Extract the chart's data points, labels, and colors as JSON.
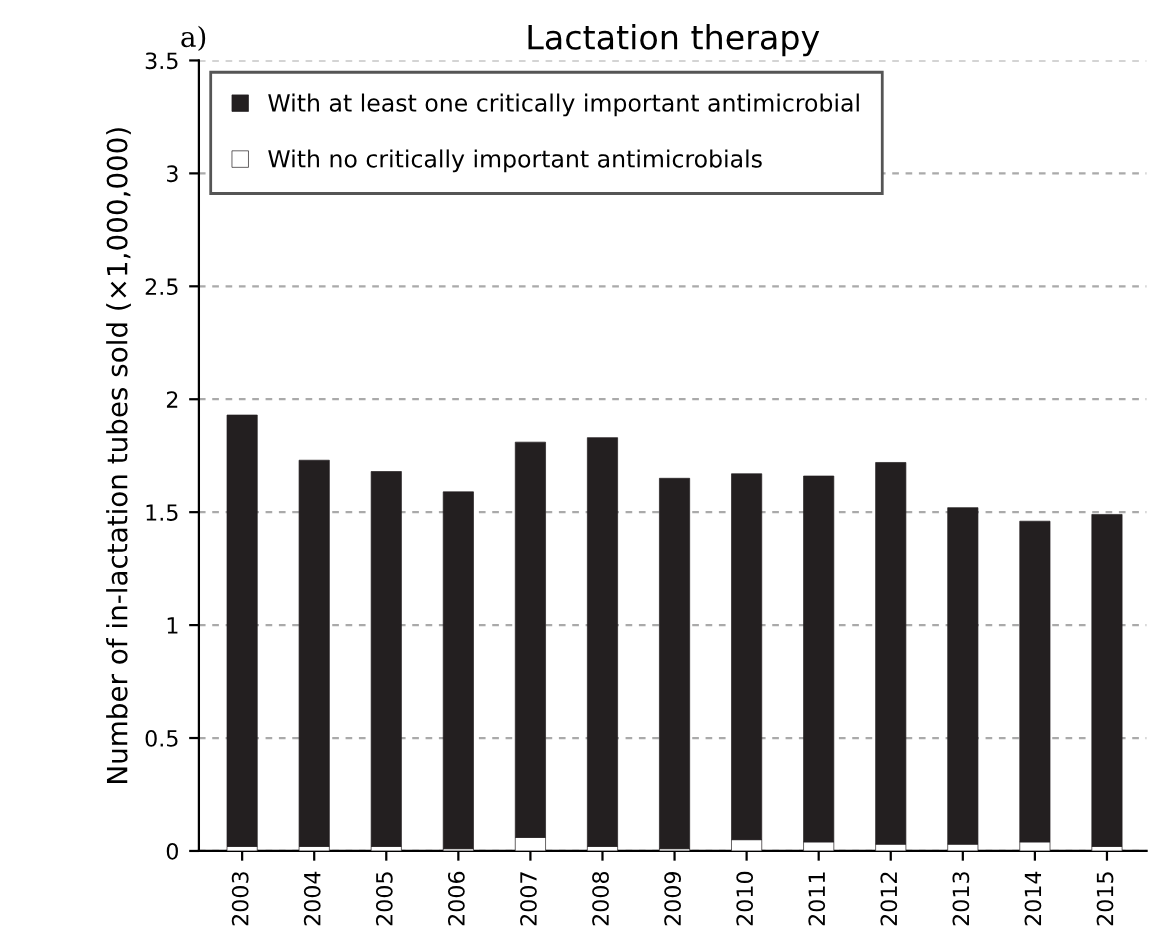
{
  "chart_data": {
    "type": "bar",
    "title": "Lactation therapy",
    "ylabel": "Number of in-lactation tubes sold (×1,000,000)",
    "annotations": [
      "a)"
    ],
    "categories": [
      "2003",
      "2004",
      "2005",
      "2006",
      "2007",
      "2008",
      "2009",
      "2010",
      "2011",
      "2012",
      "2013",
      "2014",
      "2015"
    ],
    "stacked": true,
    "series": [
      {
        "name": "With no critically important antimicrobials",
        "color": "#ffffff",
        "values": [
          0.02,
          0.02,
          0.02,
          0.01,
          0.06,
          0.02,
          0.01,
          0.05,
          0.04,
          0.03,
          0.03,
          0.04,
          0.02
        ]
      },
      {
        "name": "With at least one critically important antimicrobial",
        "color": "#231f20",
        "values": [
          1.91,
          1.71,
          1.66,
          1.58,
          1.75,
          1.81,
          1.64,
          1.62,
          1.62,
          1.69,
          1.49,
          1.42,
          1.47
        ]
      }
    ],
    "ylim": [
      0,
      3.5
    ],
    "yticks": [
      0,
      0.5,
      1,
      1.5,
      2,
      2.5,
      3,
      3.5
    ],
    "grid": "y",
    "legend": "top left"
  }
}
